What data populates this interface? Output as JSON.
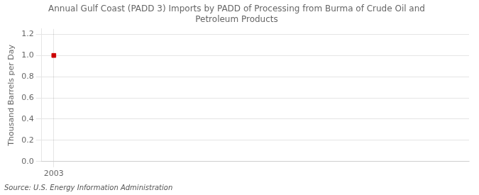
{
  "chart_data": {
    "type": "scatter",
    "title": "Annual Gulf Coast (PADD 3) Imports by PADD of Processing from Burma of Crude Oil and\nPetroleum Products",
    "ylabel": "Thousand Barrels per Day",
    "source": "Source: U.S. Energy Information Administration",
    "x": [
      2003
    ],
    "values": [
      1.0
    ],
    "color": "#cc0000",
    "marker": "square",
    "xlim": [
      2002.4,
      2023.5
    ],
    "xticks": [
      2003
    ],
    "ylim": [
      0.0,
      1.25
    ],
    "yticks": [
      {
        "value": 0.0,
        "label": "0.0"
      },
      0.2,
      0.4,
      0.6,
      0.8,
      {
        "value": 1.0,
        "label": "1.0"
      },
      1.2
    ],
    "grid": true
  }
}
